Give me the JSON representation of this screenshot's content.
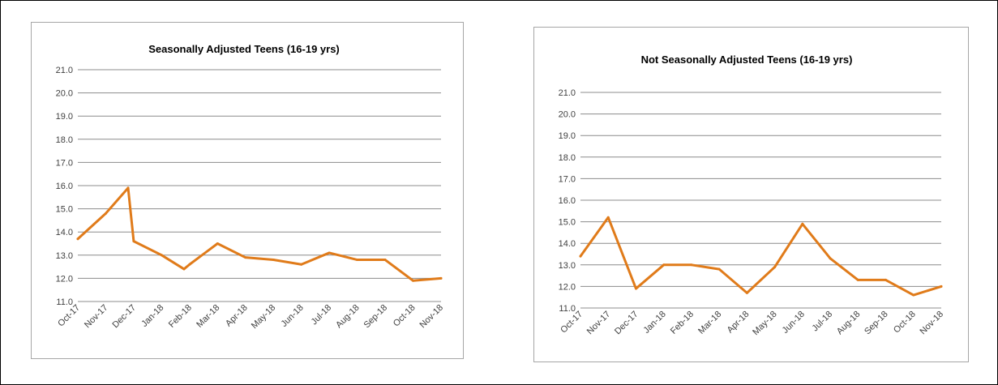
{
  "chart_data": [
    {
      "type": "line",
      "title": "Seasonally Adjusted Teens (16-19 yrs)",
      "xlabel": "",
      "ylabel": "",
      "ylim": [
        11.0,
        21.0
      ],
      "y_ticks": [
        "11.0",
        "12.0",
        "13.0",
        "14.0",
        "15.0",
        "16.0",
        "17.0",
        "18.0",
        "19.0",
        "20.0",
        "21.0"
      ],
      "categories": [
        "Oct-17",
        "Nov-17",
        "Dec-17",
        "Jan-18",
        "Feb-18",
        "Mar-18",
        "Apr-18",
        "May-18",
        "Jun-18",
        "Jul-18",
        "Aug-18",
        "Sep-18",
        "Oct-18",
        "Nov-18"
      ],
      "x_positions": [
        0,
        1,
        1.8,
        2,
        3,
        3.8,
        4,
        5,
        6,
        7,
        8,
        9,
        10,
        10.8,
        11,
        12,
        13
      ],
      "y_values": [
        13.7,
        14.8,
        15.9,
        13.6,
        13.0,
        12.4,
        12.6,
        13.5,
        12.9,
        12.8,
        12.6,
        13.1,
        12.8,
        12.8,
        12.8,
        11.9,
        12.0
      ],
      "grid": true,
      "line_color": "#e07b1a"
    },
    {
      "type": "line",
      "title": "Not Seasonally Adjusted Teens (16-19 yrs)",
      "xlabel": "",
      "ylabel": "",
      "ylim": [
        11.0,
        21.0
      ],
      "y_ticks": [
        "11.0",
        "12.0",
        "13.0",
        "14.0",
        "15.0",
        "16.0",
        "17.0",
        "18.0",
        "19.0",
        "20.0",
        "21.0"
      ],
      "categories": [
        "Oct-17",
        "Nov-17",
        "Dec-17",
        "Jan-18",
        "Feb-18",
        "Mar-18",
        "Apr-18",
        "May-18",
        "Jun-18",
        "Jul-18",
        "Aug-18",
        "Sep-18",
        "Oct-18",
        "Nov-18"
      ],
      "x_positions": [
        0,
        1,
        2,
        3,
        4,
        5,
        6,
        7,
        8,
        9,
        10,
        11,
        12,
        13
      ],
      "y_values": [
        13.4,
        15.2,
        11.9,
        13.0,
        13.0,
        12.8,
        11.7,
        12.9,
        14.9,
        13.3,
        12.3,
        12.3,
        11.6,
        12.0
      ],
      "grid": true,
      "line_color": "#e07b1a"
    }
  ]
}
